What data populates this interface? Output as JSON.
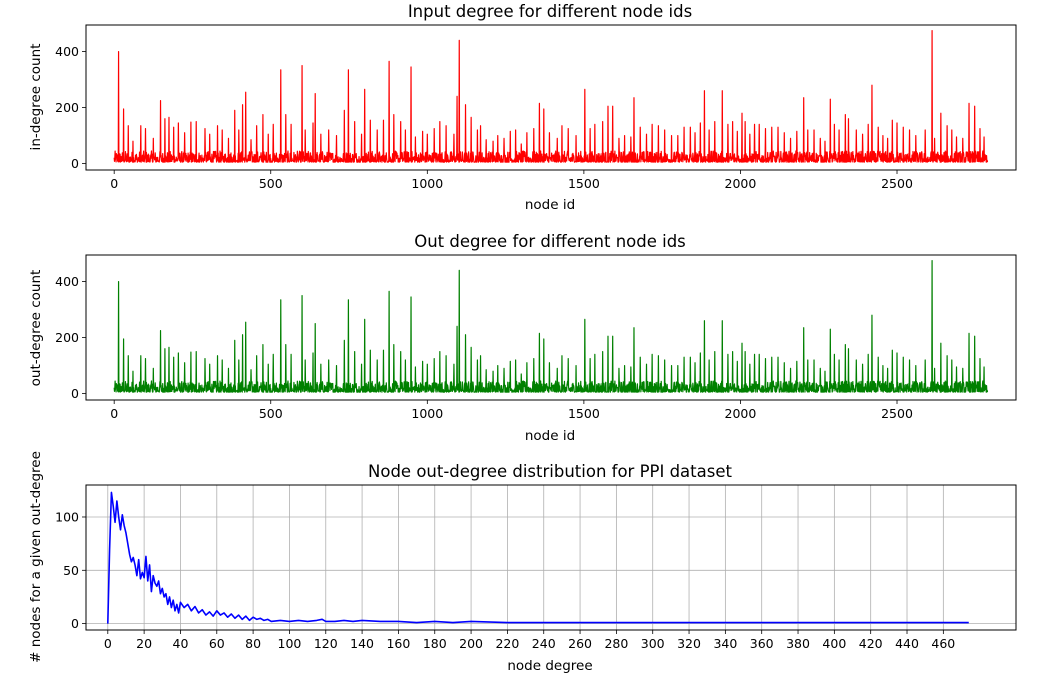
{
  "chart_data": [
    {
      "type": "line",
      "title": "Input degree for different node ids",
      "xlabel": "node id",
      "ylabel": "in-degree count",
      "xlim": [
        -90,
        2880
      ],
      "ylim": [
        -23,
        495
      ],
      "xticks": [
        0,
        500,
        1000,
        1500,
        2000,
        2500
      ],
      "yticks": [
        0,
        200,
        400
      ],
      "grid": false,
      "color": "#ff0000",
      "n_points": 2790,
      "baseline_range": [
        5,
        45
      ],
      "spikes": [
        [
          14,
          400
        ],
        [
          30,
          195
        ],
        [
          45,
          135
        ],
        [
          60,
          80
        ],
        [
          85,
          135
        ],
        [
          100,
          125
        ],
        [
          125,
          90
        ],
        [
          148,
          225
        ],
        [
          162,
          160
        ],
        [
          175,
          165
        ],
        [
          190,
          130
        ],
        [
          205,
          145
        ],
        [
          225,
          110
        ],
        [
          245,
          148
        ],
        [
          262,
          150
        ],
        [
          290,
          125
        ],
        [
          305,
          105
        ],
        [
          330,
          135
        ],
        [
          345,
          120
        ],
        [
          365,
          90
        ],
        [
          385,
          190
        ],
        [
          398,
          120
        ],
        [
          410,
          210
        ],
        [
          420,
          255
        ],
        [
          437,
          85
        ],
        [
          455,
          135
        ],
        [
          475,
          175
        ],
        [
          492,
          105
        ],
        [
          508,
          140
        ],
        [
          532,
          335
        ],
        [
          548,
          175
        ],
        [
          565,
          140
        ],
        [
          600,
          350
        ],
        [
          610,
          120
        ],
        [
          635,
          145
        ],
        [
          642,
          250
        ],
        [
          660,
          105
        ],
        [
          685,
          120
        ],
        [
          710,
          100
        ],
        [
          735,
          190
        ],
        [
          748,
          335
        ],
        [
          768,
          150
        ],
        [
          790,
          105
        ],
        [
          800,
          265
        ],
        [
          818,
          155
        ],
        [
          840,
          120
        ],
        [
          860,
          155
        ],
        [
          878,
          365
        ],
        [
          893,
          175
        ],
        [
          915,
          150
        ],
        [
          930,
          120
        ],
        [
          948,
          345
        ],
        [
          962,
          95
        ],
        [
          985,
          115
        ],
        [
          1000,
          105
        ],
        [
          1022,
          125
        ],
        [
          1040,
          150
        ],
        [
          1060,
          135
        ],
        [
          1085,
          105
        ],
        [
          1095,
          240
        ],
        [
          1102,
          440
        ],
        [
          1122,
          210
        ],
        [
          1140,
          165
        ],
        [
          1160,
          120
        ],
        [
          1170,
          135
        ],
        [
          1188,
          85
        ],
        [
          1210,
          80
        ],
        [
          1225,
          100
        ],
        [
          1245,
          90
        ],
        [
          1265,
          115
        ],
        [
          1282,
          120
        ],
        [
          1300,
          70
        ],
        [
          1318,
          110
        ],
        [
          1340,
          125
        ],
        [
          1358,
          215
        ],
        [
          1372,
          195
        ],
        [
          1390,
          110
        ],
        [
          1415,
          90
        ],
        [
          1430,
          135
        ],
        [
          1450,
          125
        ],
        [
          1475,
          100
        ],
        [
          1503,
          265
        ],
        [
          1520,
          125
        ],
        [
          1535,
          140
        ],
        [
          1560,
          150
        ],
        [
          1577,
          205
        ],
        [
          1592,
          205
        ],
        [
          1612,
          90
        ],
        [
          1630,
          100
        ],
        [
          1650,
          95
        ],
        [
          1660,
          235
        ],
        [
          1680,
          130
        ],
        [
          1700,
          105
        ],
        [
          1718,
          140
        ],
        [
          1738,
          135
        ],
        [
          1758,
          120
        ],
        [
          1780,
          100
        ],
        [
          1800,
          100
        ],
        [
          1820,
          130
        ],
        [
          1840,
          130
        ],
        [
          1855,
          110
        ],
        [
          1872,
          145
        ],
        [
          1885,
          260
        ],
        [
          1900,
          120
        ],
        [
          1918,
          150
        ],
        [
          1942,
          260
        ],
        [
          1960,
          140
        ],
        [
          1975,
          150
        ],
        [
          1990,
          115
        ],
        [
          2005,
          180
        ],
        [
          2015,
          150
        ],
        [
          2030,
          105
        ],
        [
          2045,
          140
        ],
        [
          2060,
          140
        ],
        [
          2080,
          125
        ],
        [
          2100,
          130
        ],
        [
          2120,
          130
        ],
        [
          2140,
          110
        ],
        [
          2160,
          90
        ],
        [
          2180,
          115
        ],
        [
          2202,
          235
        ],
        [
          2215,
          120
        ],
        [
          2235,
          120
        ],
        [
          2255,
          90
        ],
        [
          2270,
          80
        ],
        [
          2287,
          230
        ],
        [
          2300,
          140
        ],
        [
          2315,
          120
        ],
        [
          2335,
          175
        ],
        [
          2345,
          160
        ],
        [
          2370,
          120
        ],
        [
          2390,
          105
        ],
        [
          2408,
          140
        ],
        [
          2420,
          280
        ],
        [
          2440,
          130
        ],
        [
          2455,
          100
        ],
        [
          2470,
          90
        ],
        [
          2485,
          155
        ],
        [
          2500,
          145
        ],
        [
          2520,
          130
        ],
        [
          2540,
          120
        ],
        [
          2560,
          100
        ],
        [
          2590,
          120
        ],
        [
          2612,
          475
        ],
        [
          2620,
          90
        ],
        [
          2640,
          180
        ],
        [
          2660,
          135
        ],
        [
          2675,
          120
        ],
        [
          2690,
          95
        ],
        [
          2710,
          90
        ],
        [
          2730,
          215
        ],
        [
          2748,
          205
        ],
        [
          2765,
          125
        ],
        [
          2778,
          95
        ],
        [
          2790,
          110
        ]
      ]
    },
    {
      "type": "line",
      "title": "Out degree for different node ids",
      "xlabel": "node id",
      "ylabel": "out-degree count",
      "xlim": [
        -90,
        2880
      ],
      "ylim": [
        -23,
        495
      ],
      "xticks": [
        0,
        500,
        1000,
        1500,
        2000,
        2500
      ],
      "yticks": [
        0,
        200,
        400
      ],
      "grid": false,
      "color": "#008000",
      "n_points": 2790,
      "same_values_as": "in-degree"
    },
    {
      "type": "line",
      "title": "Node out-degree distribution for PPI dataset",
      "xlabel": "node degree",
      "ylabel": "# nodes for a given out-degree",
      "xlim": [
        -12,
        500
      ],
      "ylim": [
        -6,
        130
      ],
      "xticks": [
        0,
        20,
        40,
        60,
        80,
        100,
        120,
        140,
        160,
        180,
        200,
        220,
        240,
        260,
        280,
        300,
        320,
        340,
        360,
        380,
        400,
        420,
        440,
        460
      ],
      "yticks": [
        0,
        50,
        100
      ],
      "grid": true,
      "color": "#0000ff",
      "x": [
        0,
        1,
        2,
        3,
        4,
        5,
        6,
        7,
        8,
        9,
        10,
        11,
        12,
        13,
        14,
        15,
        16,
        17,
        18,
        19,
        20,
        21,
        22,
        23,
        24,
        25,
        26,
        27,
        28,
        29,
        30,
        31,
        32,
        33,
        34,
        35,
        36,
        37,
        38,
        39,
        40,
        42,
        44,
        46,
        48,
        50,
        52,
        54,
        56,
        58,
        60,
        62,
        64,
        66,
        68,
        70,
        72,
        74,
        76,
        78,
        80,
        82,
        84,
        86,
        88,
        90,
        95,
        100,
        105,
        110,
        115,
        118,
        120,
        125,
        130,
        135,
        140,
        150,
        160,
        170,
        180,
        190,
        200,
        220,
        240,
        260,
        280,
        300,
        320,
        340,
        360,
        380,
        400,
        420,
        440,
        460,
        474
      ],
      "y": [
        0,
        70,
        123,
        110,
        95,
        115,
        100,
        88,
        102,
        92,
        85,
        75,
        65,
        58,
        62,
        55,
        45,
        60,
        42,
        48,
        43,
        63,
        40,
        55,
        30,
        45,
        38,
        35,
        40,
        28,
        33,
        25,
        28,
        18,
        25,
        15,
        22,
        12,
        18,
        10,
        20,
        15,
        18,
        12,
        16,
        10,
        13,
        8,
        11,
        7,
        12,
        8,
        10,
        6,
        9,
        5,
        8,
        4,
        7,
        3,
        6,
        4,
        5,
        3,
        4,
        2,
        3,
        2,
        3,
        2,
        3,
        4,
        2,
        2,
        3,
        2,
        3,
        2,
        2,
        1,
        2,
        1,
        2,
        1,
        1,
        1,
        1,
        1,
        1,
        1,
        1,
        1,
        1,
        1,
        1,
        1,
        1
      ]
    }
  ]
}
